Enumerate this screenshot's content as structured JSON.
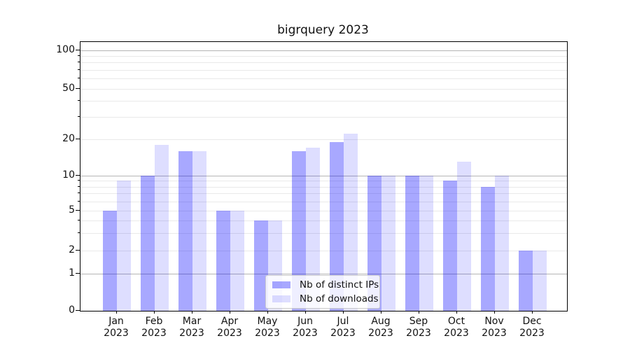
{
  "chart_data": {
    "type": "bar",
    "title": "bigrquery 2023",
    "categories": [
      "Jan",
      "Feb",
      "Mar",
      "Apr",
      "May",
      "Jun",
      "Jul",
      "Aug",
      "Sep",
      "Oct",
      "Nov",
      "Dec"
    ],
    "year_label": "2023",
    "series": [
      {
        "name": "Nb of distinct IPs",
        "color": "rgba(0,0,255,0.34)",
        "values": [
          5,
          10,
          16,
          5,
          4,
          16,
          19,
          10,
          10,
          9,
          8,
          2
        ]
      },
      {
        "name": "Nb of downloads",
        "color": "rgba(0,0,255,0.13)",
        "values": [
          9,
          18,
          16,
          5,
          4,
          17,
          22,
          10,
          10,
          13,
          10,
          2
        ]
      }
    ],
    "y_axis": {
      "ticks": [
        0,
        1,
        2,
        5,
        10,
        20,
        50,
        100
      ],
      "scale": "log-like (log above 1, linear 0-1)",
      "range": [
        0,
        128
      ],
      "grid": true
    },
    "x_axis": {
      "tick_label_lines": [
        "month",
        "year"
      ]
    },
    "legend": {
      "position": "lower center",
      "frame": true
    }
  },
  "colors": {
    "major_grid": "#b4b4b4",
    "minor_grid": "#e9e9e9",
    "spine": "#000000",
    "text": "#111111",
    "background": "#ffffff"
  }
}
